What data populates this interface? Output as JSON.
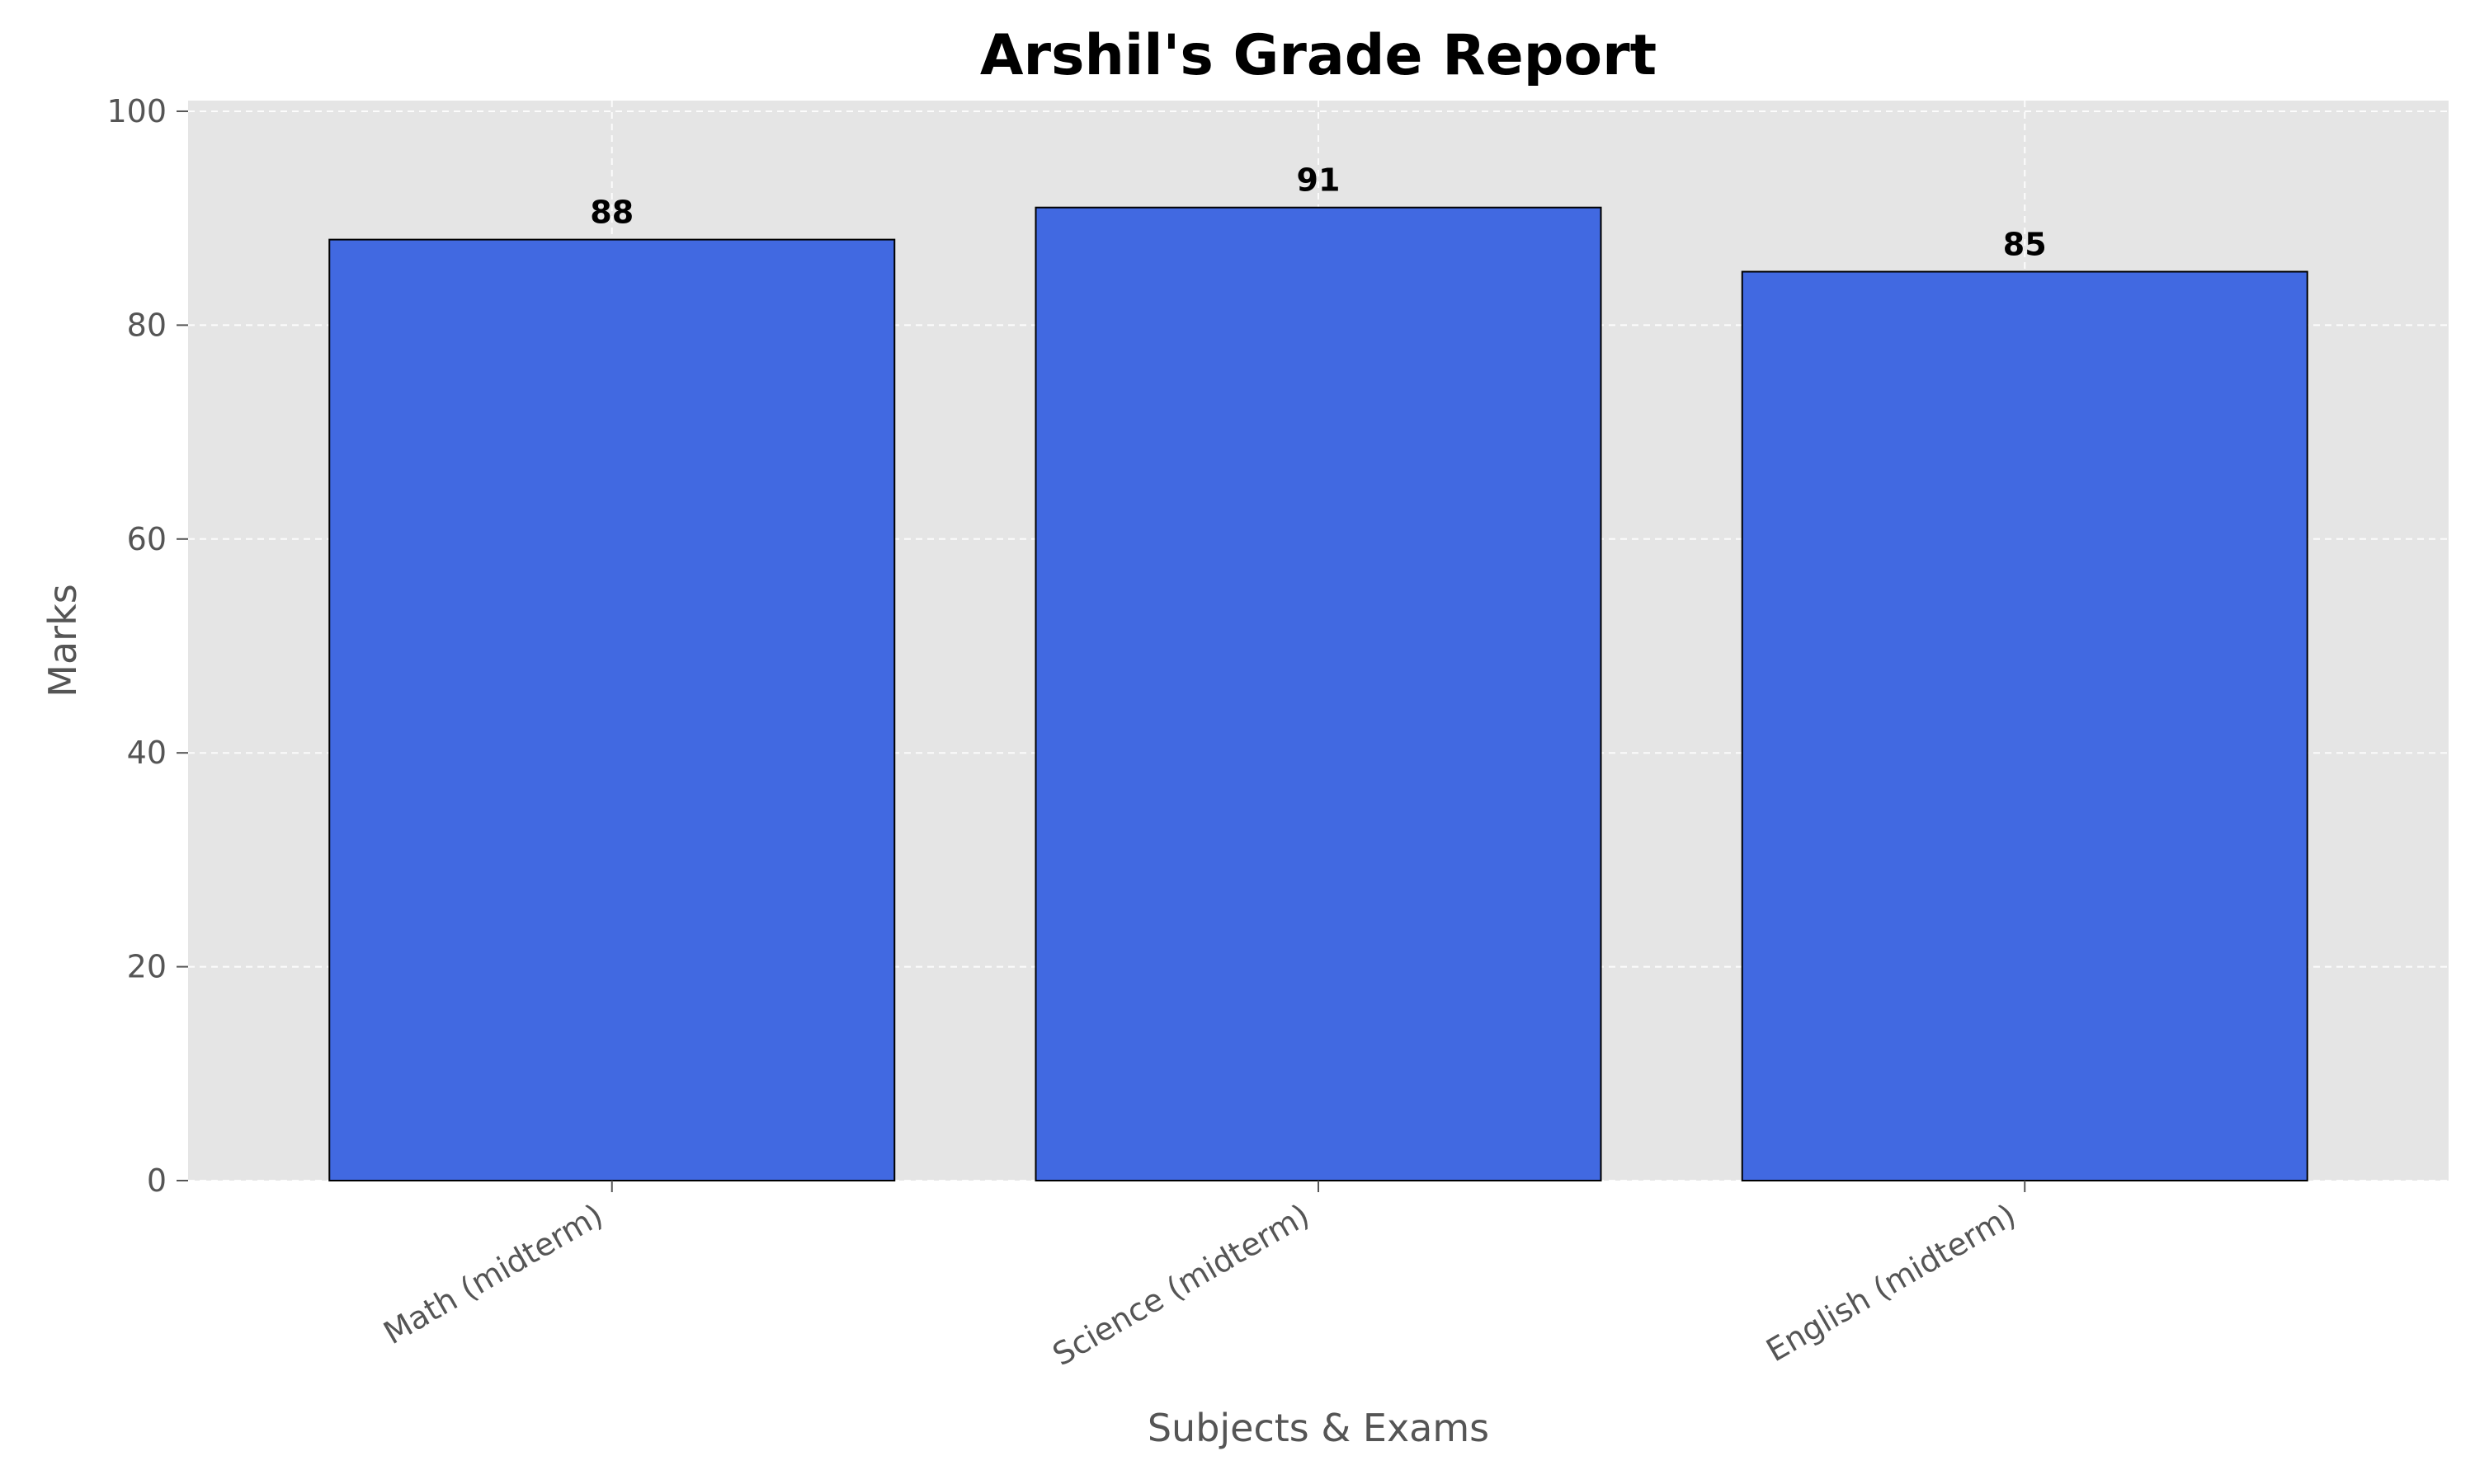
{
  "chart_data": {
    "type": "bar",
    "title": "Arshil's Grade Report",
    "xlabel": "Subjects & Exams",
    "ylabel": "Marks",
    "categories": [
      "Math (midterm)",
      "Science (midterm)",
      "English (midterm)"
    ],
    "values": [
      88,
      91,
      85
    ],
    "data_labels": [
      "88",
      "91",
      "85"
    ],
    "ylim": [
      0,
      100
    ],
    "yticks": [
      0,
      20,
      40,
      60,
      80,
      100
    ],
    "ytick_labels": [
      "0",
      "20",
      "40",
      "60",
      "80",
      "100"
    ],
    "grid": true,
    "colors": {
      "bar": "#4169e1",
      "bar_edge": "#000000",
      "plot_background": "#e5e5e5",
      "grid": "#ffffff"
    }
  }
}
